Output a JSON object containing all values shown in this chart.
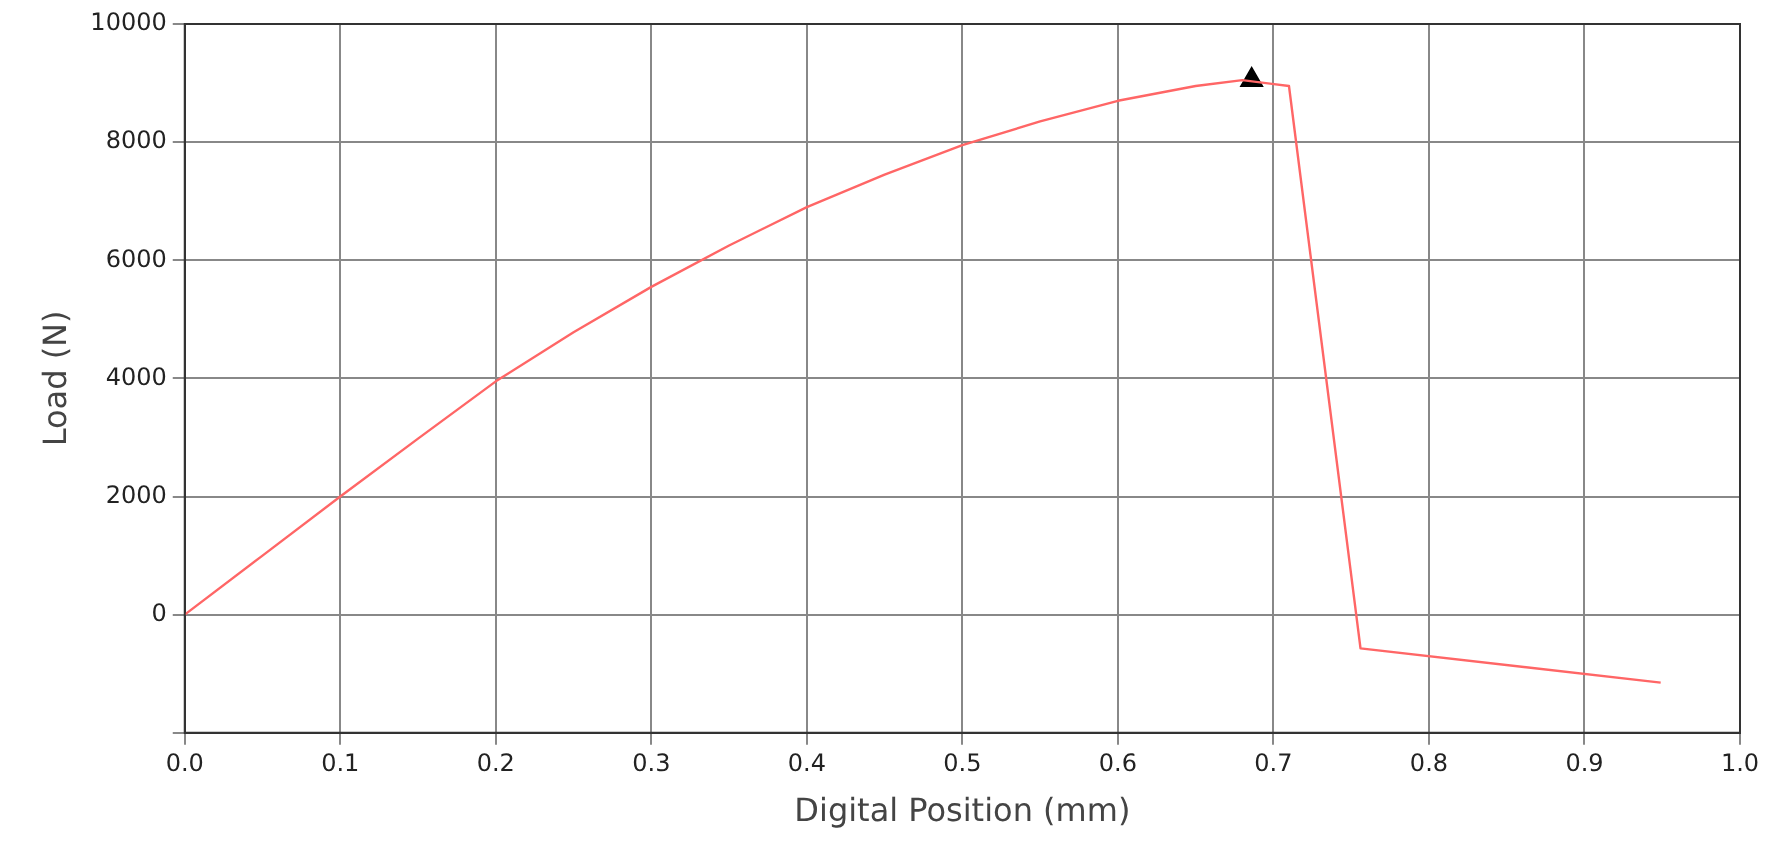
{
  "chart_data": {
    "type": "line",
    "xlabel": "Digital Position (mm)",
    "ylabel": "Load (N)",
    "xlim": [
      0,
      1
    ],
    "xticks": [
      {
        "value": 0,
        "label": "0.0"
      },
      {
        "value": 0.1,
        "label": "0.1"
      },
      {
        "value": 0.2,
        "label": "0.2"
      },
      {
        "value": 0.3,
        "label": "0.3"
      },
      {
        "value": 0.4,
        "label": "0.4"
      },
      {
        "value": 0.5,
        "label": "0.5"
      },
      {
        "value": 0.6,
        "label": "0.6"
      },
      {
        "value": 0.7,
        "label": "0.7"
      },
      {
        "value": 0.8,
        "label": "0.8"
      },
      {
        "value": 0.9,
        "label": "0.9"
      },
      {
        "value": 1,
        "label": "1.0"
      }
    ],
    "ylim": [
      -2000,
      10000
    ],
    "yticks": [
      {
        "value": -2000,
        "label": null
      },
      0,
      2000,
      4000,
      6000,
      8000,
      10000
    ],
    "grid": true,
    "legend": false,
    "line_style": "solid",
    "series": [
      {
        "color": "#ff6666",
        "marker": "none",
        "x": [
          0,
          0.05,
          0.1,
          0.15,
          0.2,
          0.25,
          0.3,
          0.35,
          0.4,
          0.45,
          0.5,
          0.55,
          0.6,
          0.65,
          0.68,
          0.71,
          0.756,
          0.949
        ],
        "values": [
          0,
          1000,
          2000,
          2980,
          3950,
          4780,
          5550,
          6250,
          6900,
          7450,
          7950,
          8350,
          8700,
          8950,
          9050,
          8950,
          -570,
          -1150
        ]
      },
      {
        "type": "scatter",
        "color": "#000000",
        "marker": "triangle",
        "x": [
          0.686
        ],
        "values": [
          9050
        ]
      }
    ]
  }
}
